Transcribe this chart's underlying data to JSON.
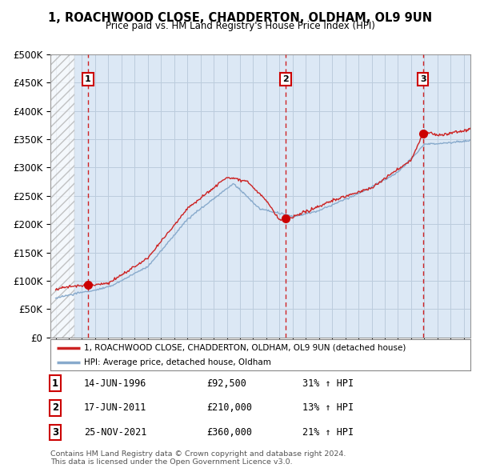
{
  "title": "1, ROACHWOOD CLOSE, CHADDERTON, OLDHAM, OL9 9UN",
  "subtitle": "Price paid vs. HM Land Registry's House Price Index (HPI)",
  "ylim": [
    0,
    500000
  ],
  "yticks": [
    0,
    50000,
    100000,
    150000,
    200000,
    250000,
    300000,
    350000,
    400000,
    450000,
    500000
  ],
  "ytick_labels": [
    "£0",
    "£50K",
    "£100K",
    "£150K",
    "£200K",
    "£250K",
    "£300K",
    "£350K",
    "£400K",
    "£450K",
    "£500K"
  ],
  "xlim_start": 1993.6,
  "xlim_end": 2025.5,
  "hatch_end": 1995.4,
  "sale_dates": [
    1996.45,
    2011.46,
    2021.9
  ],
  "sale_prices": [
    92500,
    210000,
    360000
  ],
  "sale_labels": [
    "1",
    "2",
    "3"
  ],
  "sale_date_strs": [
    "14-JUN-1996",
    "17-JUN-2011",
    "25-NOV-2021"
  ],
  "sale_price_strs": [
    "£92,500",
    "£210,000",
    "£360,000"
  ],
  "sale_hpi_strs": [
    "31% ↑ HPI",
    "13% ↑ HPI",
    "21% ↑ HPI"
  ],
  "property_line_color": "#cc2222",
  "hpi_line_color": "#88aacc",
  "grid_color": "#bbccdd",
  "plot_bg": "#dce8f5",
  "legend_label_property": "1, ROACHWOOD CLOSE, CHADDERTON, OLDHAM, OL9 9UN (detached house)",
  "legend_label_hpi": "HPI: Average price, detached house, Oldham",
  "footer": "Contains HM Land Registry data © Crown copyright and database right 2024.\nThis data is licensed under the Open Government Licence v3.0."
}
